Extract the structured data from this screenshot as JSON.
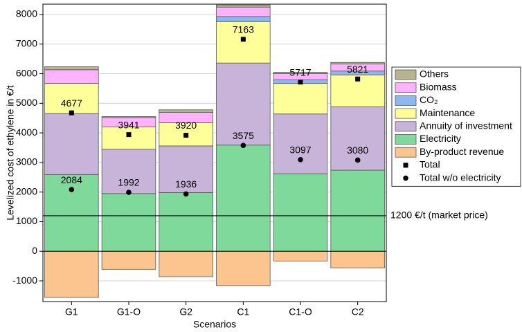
{
  "chart_data": {
    "type": "stacked_bar",
    "y_label": "Levelized cost of ethylene in €/t",
    "x_label": "Scenarios",
    "categories": [
      "G1",
      "G1-O",
      "G2",
      "C1",
      "C1-O",
      "C2"
    ],
    "series": [
      {
        "name": "By-product revenue",
        "color": "#fcc48f",
        "values": [
          -1560,
          -610,
          -860,
          -1160,
          -330,
          -560
        ]
      },
      {
        "name": "Electricity",
        "color": "#7fd99b",
        "values": [
          2593,
          1949,
          1984,
          3588,
          2620,
          2741
        ]
      },
      {
        "name": "Annuity of investment",
        "color": "#c8b3d9",
        "values": [
          2060,
          1500,
          1576,
          2772,
          2020,
          2139
        ]
      },
      {
        "name": "Maintenance",
        "color": "#ffff99",
        "values": [
          1020,
          750,
          780,
          1400,
          1030,
          1080
        ]
      },
      {
        "name": "CO₂",
        "color": "#8ab8f0",
        "values": [
          0,
          0,
          0,
          170,
          120,
          130
        ]
      },
      {
        "name": "Biomass",
        "color": "#ffb3ff",
        "values": [
          460,
          320,
          350,
          320,
          210,
          240
        ]
      },
      {
        "name": "Others",
        "color": "#b5b48f",
        "values": [
          104,
          32,
          90,
          73,
          47,
          51
        ]
      }
    ],
    "markers": [
      {
        "name": "Total",
        "shape": "square",
        "values": [
          4677,
          3941,
          3920,
          7163,
          5717,
          5821
        ]
      },
      {
        "name": "Total w/o electricity",
        "shape": "circle",
        "values": [
          2084,
          1992,
          1936,
          3575,
          3097,
          3080
        ]
      }
    ],
    "reference_line": {
      "value": 1200,
      "label": "1200 €/t (market price)"
    },
    "ylim": [
      -1700,
      8350
    ],
    "yticks": [
      -1000,
      0,
      1000,
      2000,
      3000,
      4000,
      5000,
      6000,
      7000,
      8000
    ],
    "grid": true,
    "legend": "right"
  }
}
